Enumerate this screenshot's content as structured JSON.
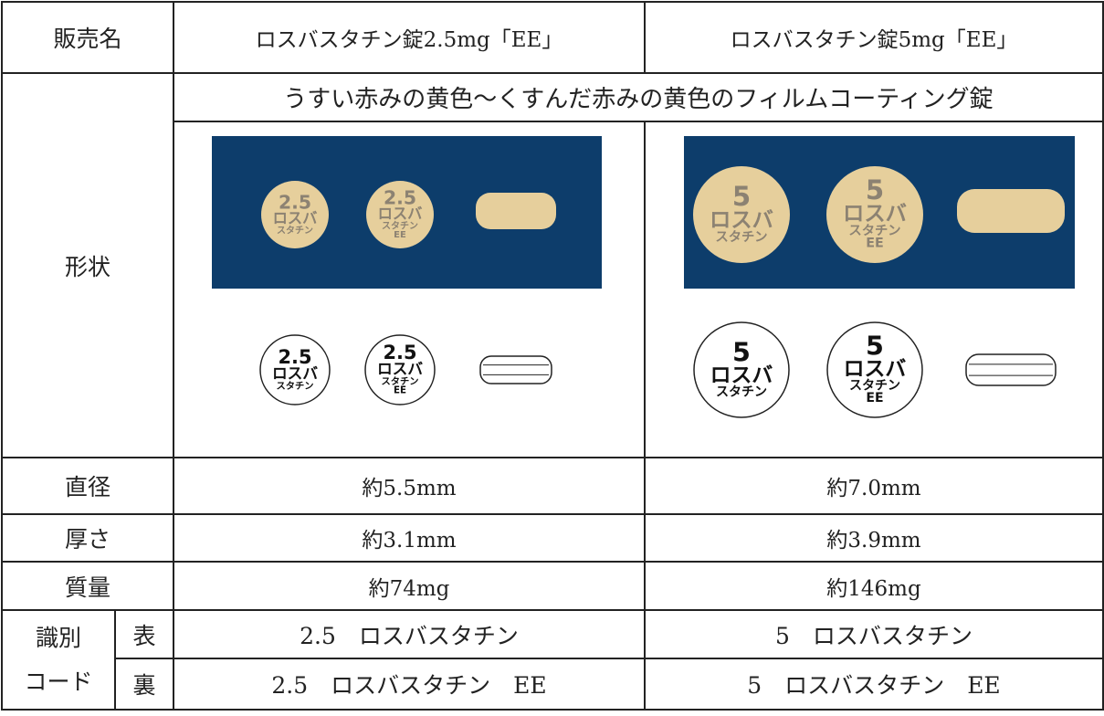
{
  "header": [
    "販売名",
    "ロスバスタチン錠2.5mg「EE」",
    "ロスバスタチン錠5mg「EE」"
  ],
  "shape": {
    "label": "形状",
    "description": "うすい赤みの黄色～くすんだ赤みの黄色のフィルムコーティング錠",
    "products": [
      {
        "front": [
          "2.5",
          "ロスバ",
          "スタチン"
        ],
        "back": [
          "2.5",
          "ロスバ",
          "スタチン",
          "EE"
        ]
      },
      {
        "front": [
          "5",
          "ロスバ",
          "スタチン"
        ],
        "back": [
          "5",
          "ロスバ",
          "スタチン",
          "EE"
        ]
      }
    ]
  },
  "rows": [
    [
      "直径",
      "約5.5mm",
      "約7.0mm"
    ],
    [
      "厚さ",
      "約3.1mm",
      "約3.9mm"
    ],
    [
      "質量",
      "約74mg",
      "約146mg"
    ]
  ],
  "code": {
    "label": [
      "識別",
      "コード"
    ],
    "rows": [
      [
        "表",
        "2.5　ロスバスタチン",
        "5　ロスバスタチン"
      ],
      [
        "裏",
        "2.5　ロスバスタチン　EE",
        "5　ロスバスタチン　EE"
      ]
    ]
  }
}
